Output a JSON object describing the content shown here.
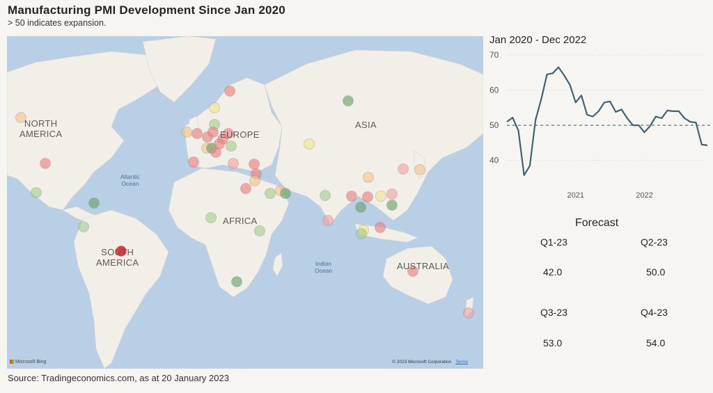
{
  "header": {
    "title": "Manufacturing PMI Development Since Jan 2020",
    "subtitle": "> 50 indicates expansion."
  },
  "map": {
    "continent_labels": [
      "NORTH AMERICA",
      "EUROPE",
      "ASIA",
      "AFRICA",
      "SOUTH AMERICA",
      "AUSTRALIA"
    ],
    "ocean_labels": [
      "Atlantic Ocean",
      "Indian Ocean"
    ],
    "attribution": "© 2023 Microsoft Corporation",
    "terms_label": "Terms",
    "logo_text": "Microsoft Bing",
    "colors": {
      "water": "#b9cfe6",
      "land": "#f2efe9",
      "contracting": "#f08080",
      "slightly_contracting": "#f5a3a3",
      "neutral": "#f5c48c",
      "near_fifty": "#f0e68c",
      "expanding": "#a8d08d",
      "strong_expanding": "#6aa56a",
      "strong_contracting": "#e8171f"
    }
  },
  "footer": {
    "source": "Source: Tradingeconomics.com, as at 20 January 2023"
  },
  "chart_data": {
    "type": "line",
    "title": "Jan 2020 - Dec 2022",
    "x_tick_labels": [
      "2021",
      "2022"
    ],
    "y_ticks": [
      40,
      50,
      60,
      70
    ],
    "ylim": [
      34,
      71
    ],
    "reference_line": 50,
    "color": "#3f6370",
    "series": [
      {
        "x": [
          "2020-01",
          "2020-02",
          "2020-03",
          "2020-04",
          "2020-05",
          "2020-06",
          "2020-07",
          "2020-08",
          "2020-09",
          "2020-10",
          "2020-11",
          "2020-12",
          "2021-01",
          "2021-02",
          "2021-03",
          "2021-04",
          "2021-05",
          "2021-06",
          "2021-07",
          "2021-08",
          "2021-09",
          "2021-10",
          "2021-11",
          "2021-12",
          "2022-01",
          "2022-02",
          "2022-03",
          "2022-04",
          "2022-05",
          "2022-06",
          "2022-07",
          "2022-08",
          "2022-09",
          "2022-10",
          "2022-11",
          "2022-12"
        ],
        "values": [
          51.0,
          52.2,
          48.5,
          35.8,
          38.5,
          51.5,
          57.5,
          64.5,
          64.8,
          66.5,
          64.2,
          61.5,
          56.5,
          58.5,
          53.0,
          52.5,
          54.0,
          56.5,
          56.8,
          53.8,
          54.5,
          52.0,
          50.0,
          50.0,
          48.0,
          49.8,
          52.5,
          52.0,
          54.2,
          54.0,
          54.0,
          52.0,
          51.0,
          50.8,
          44.5,
          44.3
        ]
      }
    ]
  },
  "forecast": {
    "title": "Forecast",
    "quarters": [
      {
        "label": "Q1-23",
        "value": "42.0"
      },
      {
        "label": "Q2-23",
        "value": "50.0"
      },
      {
        "label": "Q3-23",
        "value": "53.0"
      },
      {
        "label": "Q4-23",
        "value": "54.0"
      }
    ]
  }
}
